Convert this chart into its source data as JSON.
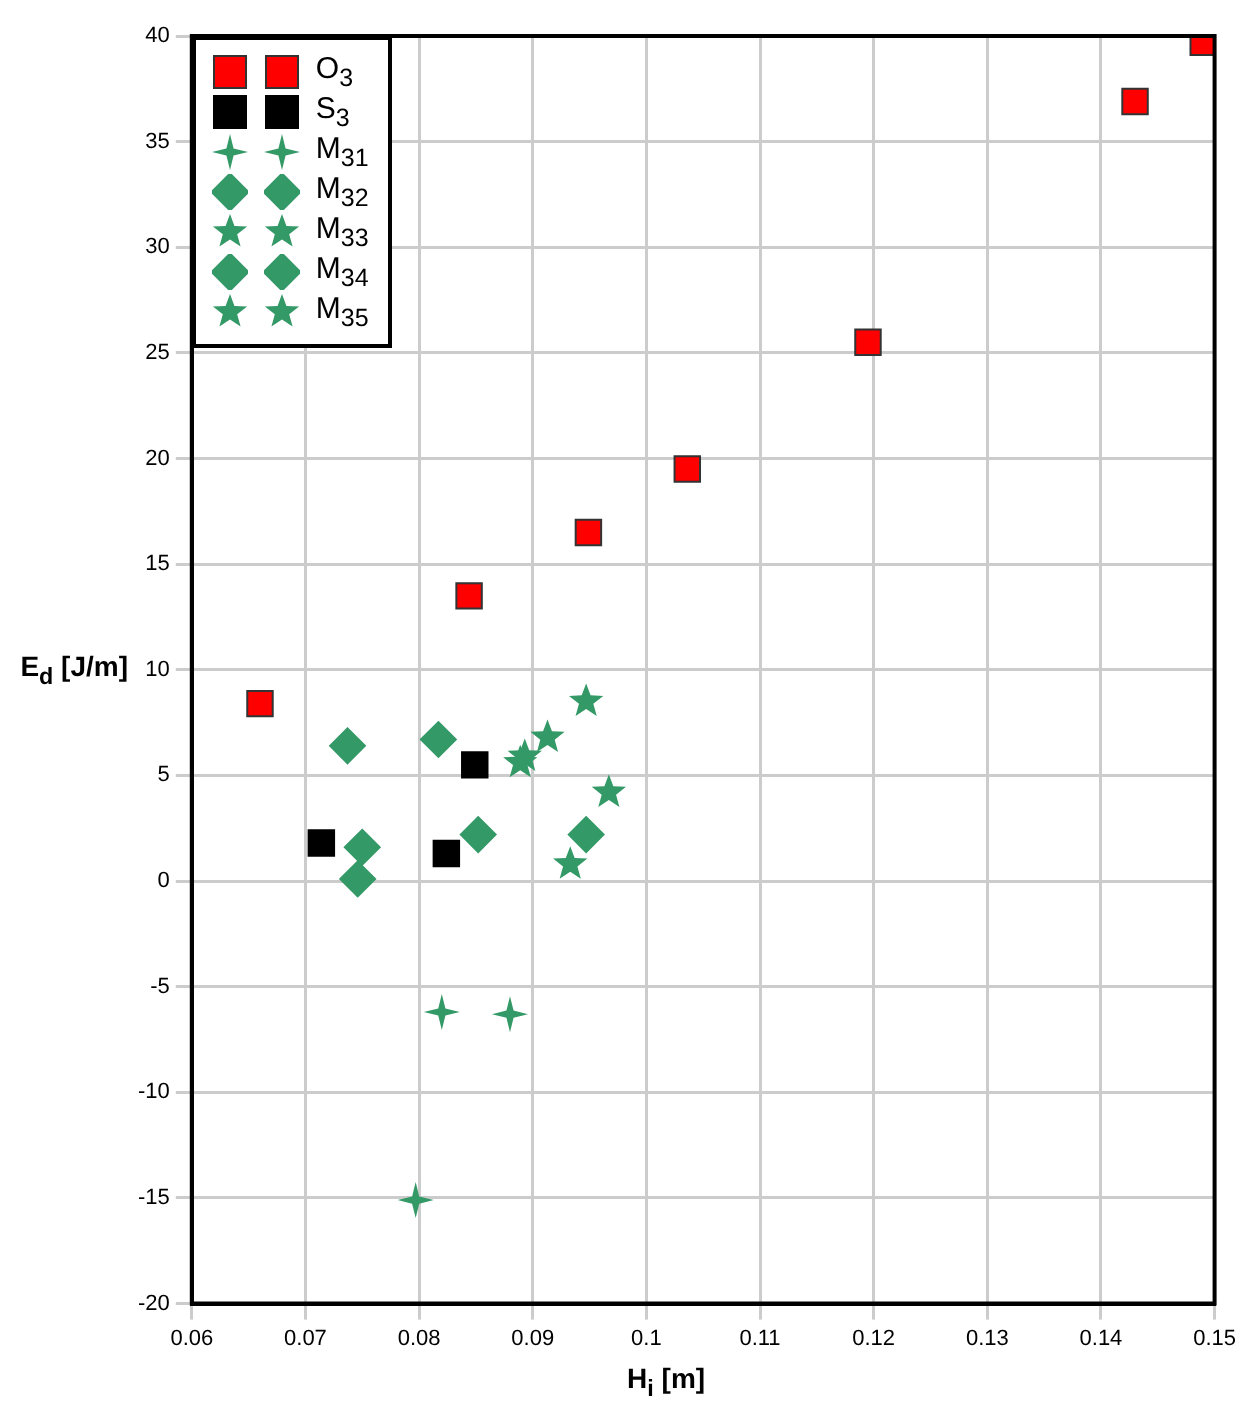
{
  "chart_data": {
    "type": "scatter",
    "xlabel": "H$_{i}$ [m]",
    "ylabel": "E$_{d}$ [J/m]",
    "xlim": [
      0.06,
      0.15
    ],
    "ylim": [
      -20,
      40
    ],
    "xticks": [
      0.06,
      0.07,
      0.08,
      0.09,
      0.1,
      0.11,
      0.12,
      0.13,
      0.14,
      0.15
    ],
    "yticks": [
      -20,
      -15,
      -10,
      -5,
      0,
      5,
      10,
      15,
      20,
      25,
      30,
      35,
      40
    ],
    "grid": true,
    "legend": "top left",
    "series": [
      {
        "name": "O$_{3}$",
        "color": "#ff0000",
        "marker": "square",
        "x": [
          0.066,
          0.0844,
          0.0949,
          0.1036,
          0.1195,
          0.143,
          0.149
        ],
        "values": [
          8.4,
          13.5,
          16.5,
          19.5,
          25.5,
          36.9,
          39.7
        ]
      },
      {
        "name": "S$_{3}$",
        "color": "#000000",
        "marker": "square",
        "x": [
          0.0714,
          0.0824,
          0.0849
        ],
        "values": [
          1.8,
          1.3,
          5.5
        ]
      },
      {
        "name": "M$_{31}$",
        "color": "#339966",
        "marker": "cross",
        "x": [
          0.082,
          0.088,
          0.0797
        ],
        "values": [
          -6.2,
          -6.3,
          -15.1
        ]
      },
      {
        "name": "M$_{32}$",
        "color": "#339966",
        "marker": "diamond",
        "x": [
          0.0737,
          0.075,
          0.0947
        ],
        "values": [
          6.4,
          1.6,
          2.2
        ]
      },
      {
        "name": "M$_{33}$",
        "color": "#339966",
        "marker": "star",
        "x": [
          0.0893,
          0.0913,
          0.0947
        ],
        "values": [
          5.9,
          6.8,
          8.5
        ]
      },
      {
        "name": "M$_{34}$",
        "color": "#339966",
        "marker": "diamond",
        "x": [
          0.0746,
          0.0817,
          0.0852
        ],
        "values": [
          0.1,
          6.7,
          2.2
        ]
      },
      {
        "name": "M$_{35}$",
        "color": "#339966",
        "marker": "star",
        "x": [
          0.0889,
          0.0967,
          0.0933
        ],
        "values": [
          5.6,
          4.2,
          0.8
        ]
      }
    ]
  }
}
